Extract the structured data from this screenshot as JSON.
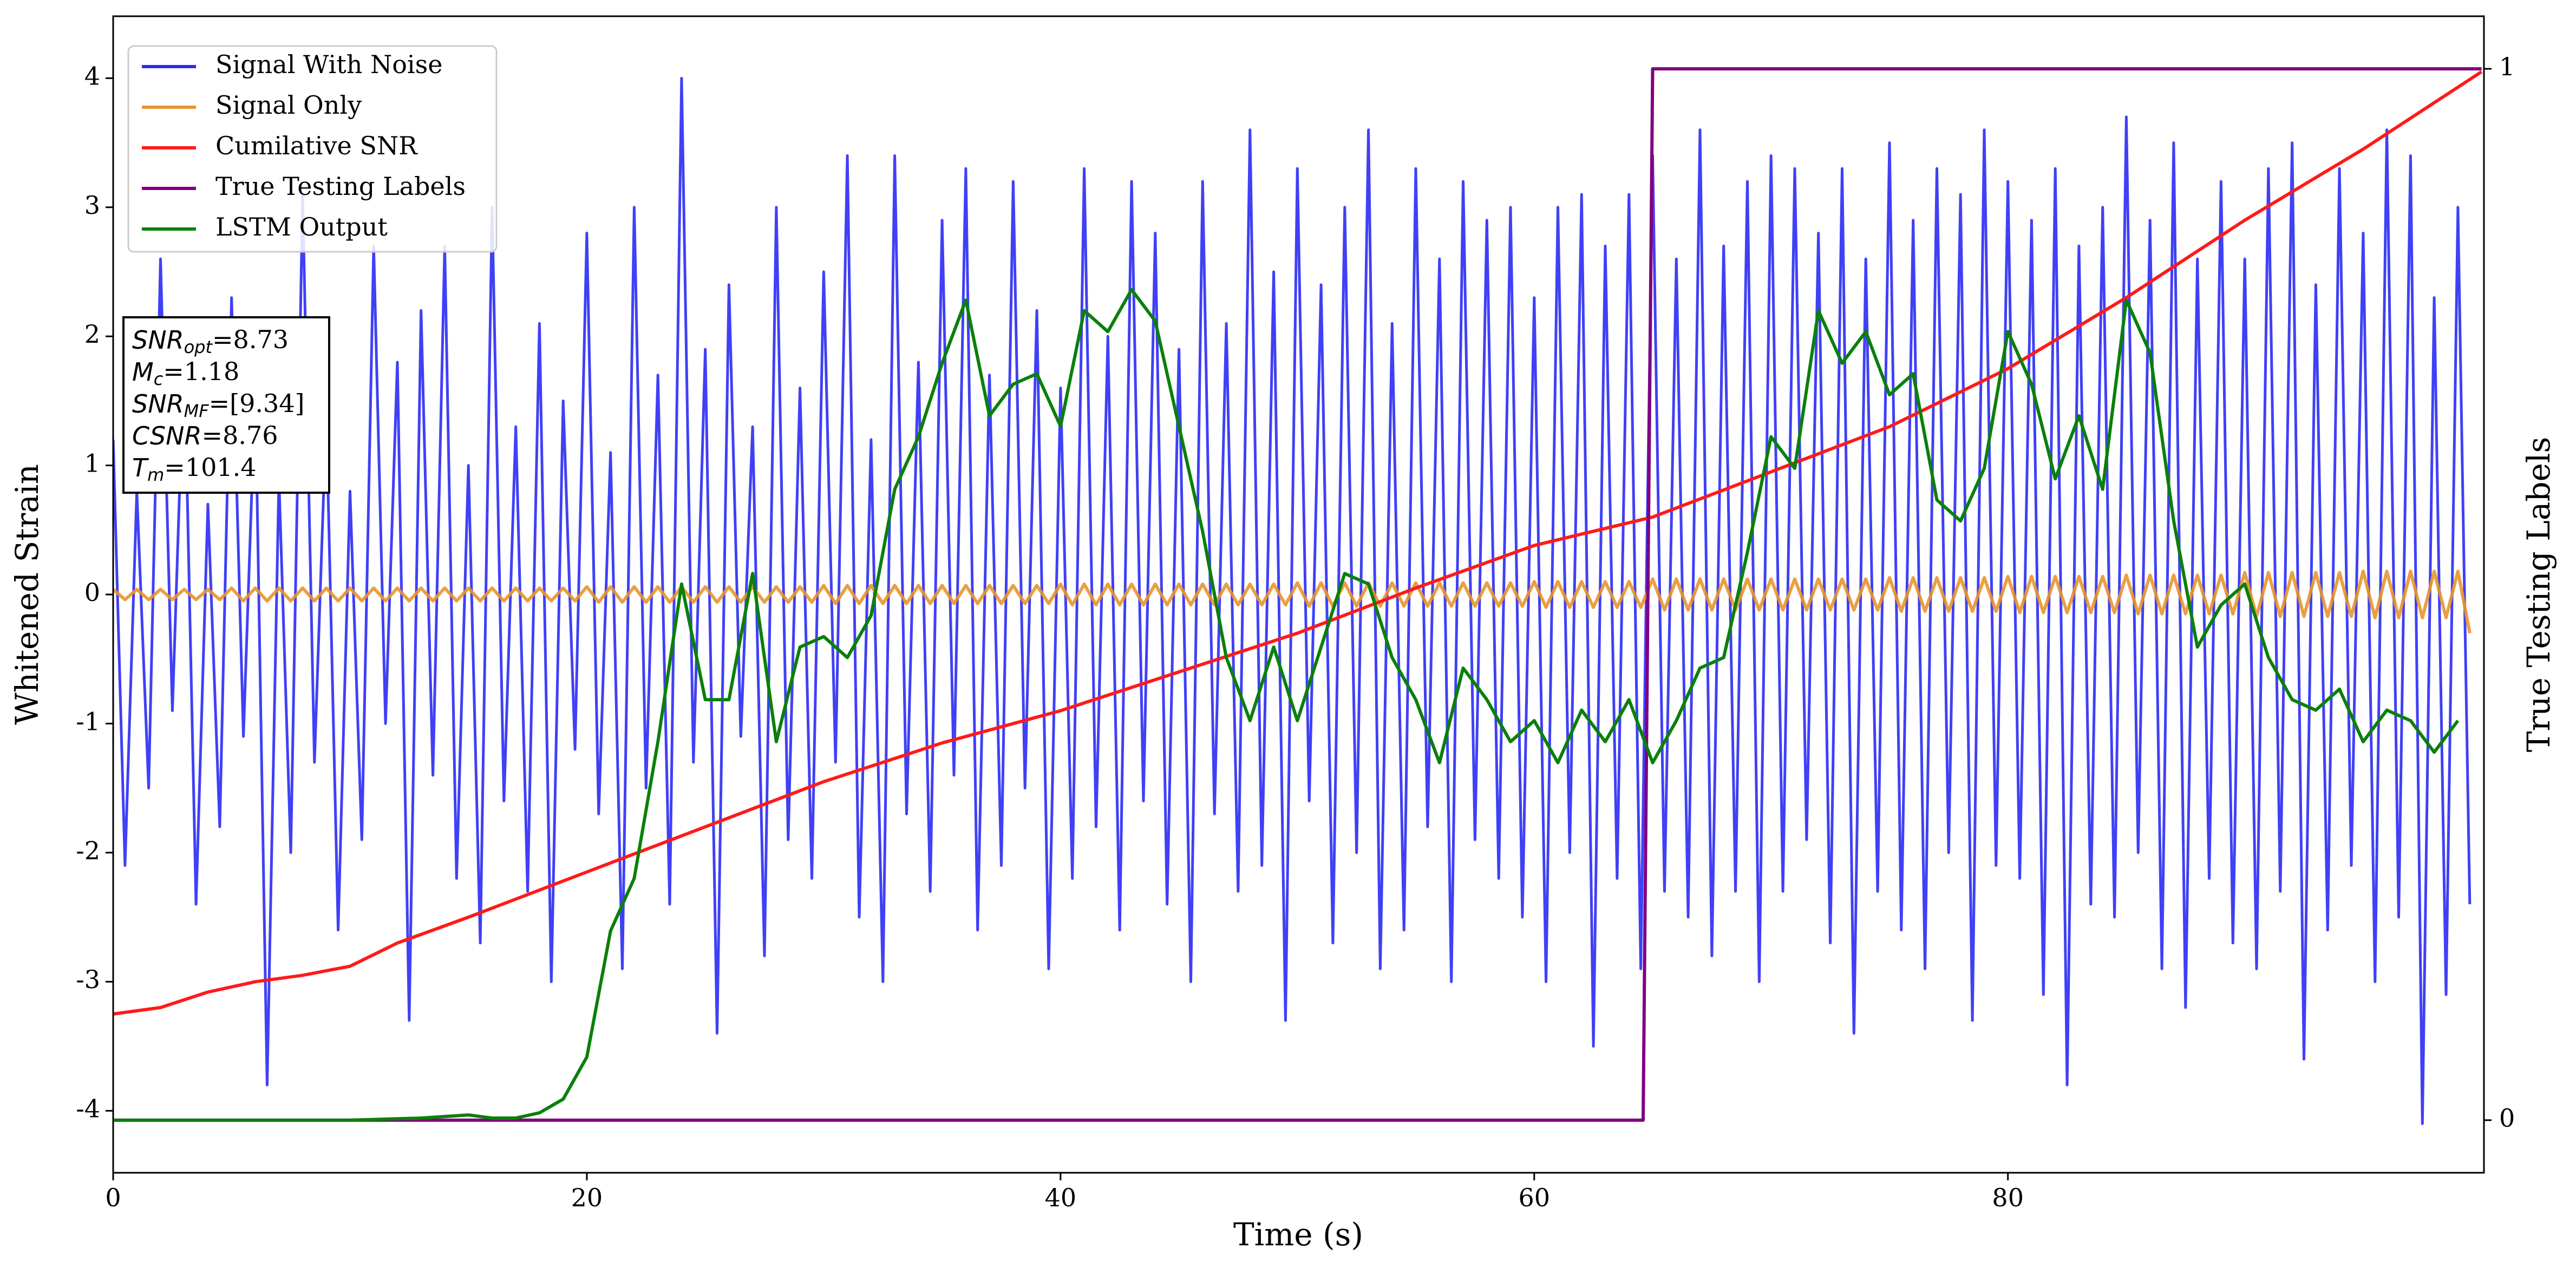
{
  "chart_data": {
    "type": "line",
    "xlabel": "Time (s)",
    "ylabel": "Whitened Strain",
    "y2label": "True Testing Labels",
    "xlim": [
      0,
      100.1
    ],
    "ylim": [
      -4.48,
      4.48
    ],
    "y2lim": [
      -0.05,
      1.05
    ],
    "xticks": [
      0,
      20,
      40,
      60,
      80
    ],
    "yticks": [
      -4,
      -3,
      -2,
      -1,
      0,
      1,
      2,
      3,
      4
    ],
    "y2ticks": [
      0,
      1
    ],
    "grid": false,
    "legend": "upper left",
    "annotations": [
      {
        "text": "SNR",
        "sub": "opt",
        "value": "=8.73"
      },
      {
        "text": "M",
        "sub": "c",
        "value": "=1.18"
      },
      {
        "text": "SNR",
        "sub": "MF",
        "value": "=[9.34]"
      },
      {
        "text": "CSNR",
        "sub": null,
        "value": "=8.76"
      },
      {
        "text": "T",
        "sub": "m",
        "value": "=101.4"
      }
    ],
    "x": [
      0,
      0.5,
      1,
      1.5,
      2,
      2.5,
      3,
      3.5,
      4,
      4.5,
      5,
      5.5,
      6,
      6.5,
      7,
      7.5,
      8,
      8.5,
      9,
      9.5,
      10,
      10.5,
      11,
      11.5,
      12,
      12.5,
      13,
      13.5,
      14,
      14.5,
      15,
      15.5,
      16,
      16.5,
      17,
      17.5,
      18,
      18.5,
      19,
      19.5,
      20,
      20.5,
      21,
      21.5,
      22,
      22.5,
      23,
      23.5,
      24,
      24.5,
      25,
      25.5,
      26,
      26.5,
      27,
      27.5,
      28,
      28.5,
      29,
      29.5,
      30,
      30.5,
      31,
      31.5,
      32,
      32.5,
      33,
      33.5,
      34,
      34.5,
      35,
      35.5,
      36,
      36.5,
      37,
      37.5,
      38,
      38.5,
      39,
      39.5,
      40,
      40.5,
      41,
      41.5,
      42,
      42.5,
      43,
      43.5,
      44,
      44.5,
      45,
      45.5,
      46,
      46.5,
      47,
      47.5,
      48,
      48.5,
      49,
      49.5,
      50,
      50.5,
      51,
      51.5,
      52,
      52.5,
      53,
      53.5,
      54,
      54.5,
      55,
      55.5,
      56,
      56.5,
      57,
      57.5,
      58,
      58.5,
      59,
      59.5,
      60,
      60.5,
      61,
      61.5,
      62,
      62.5,
      63,
      63.5,
      64,
      64.5,
      65,
      65.5,
      66,
      66.5,
      67,
      67.5,
      68,
      68.5,
      69,
      69.5,
      70,
      70.5,
      71,
      71.5,
      72,
      72.5,
      73,
      73.5,
      74,
      74.5,
      75,
      75.5,
      76,
      76.5,
      77,
      77.5,
      78,
      78.5,
      79,
      79.5,
      80,
      80.5,
      81,
      81.5,
      82,
      82.5,
      83,
      83.5,
      84,
      84.5,
      85,
      85.5,
      86,
      86.5,
      87,
      87.5,
      88,
      88.5,
      89,
      89.5,
      90,
      90.5,
      91,
      91.5,
      92,
      92.5,
      93,
      93.5,
      94,
      94.5,
      95,
      95.5,
      96,
      96.5,
      97,
      97.5,
      98,
      98.5,
      99,
      99.5
    ],
    "series": [
      {
        "name": "Signal With Noise",
        "color": "#2b2bf5",
        "values": [
          1.2,
          -2.1,
          0.8,
          -1.5,
          2.6,
          -0.9,
          1.9,
          -2.4,
          0.7,
          -1.8,
          2.3,
          -1.1,
          1.6,
          -3.8,
          0.9,
          -2.0,
          3.1,
          -1.3,
          1.4,
          -2.6,
          0.8,
          -1.9,
          2.7,
          -1.0,
          1.8,
          -3.3,
          2.2,
          -1.4,
          2.7,
          -2.2,
          1.0,
          -2.7,
          3.0,
          -1.6,
          1.3,
          -2.3,
          2.1,
          -3.0,
          1.5,
          -1.2,
          2.8,
          -1.7,
          1.1,
          -2.9,
          3.0,
          -1.5,
          1.7,
          -2.4,
          4.0,
          -1.3,
          1.9,
          -3.4,
          2.4,
          -1.1,
          1.3,
          -2.8,
          3.0,
          -1.9,
          1.6,
          -2.2,
          2.5,
          -1.3,
          3.4,
          -2.5,
          1.2,
          -3.0,
          3.4,
          -1.7,
          1.8,
          -2.3,
          2.9,
          -1.4,
          3.3,
          -2.6,
          1.7,
          -2.1,
          3.2,
          -1.5,
          2.2,
          -2.9,
          1.6,
          -2.2,
          3.3,
          -1.8,
          2.0,
          -2.6,
          3.2,
          -1.6,
          2.8,
          -2.4,
          1.9,
          -3.0,
          3.2,
          -1.7,
          2.1,
          -2.3,
          3.6,
          -2.1,
          2.5,
          -3.3,
          3.3,
          -1.6,
          2.4,
          -2.7,
          3.0,
          -2.0,
          3.6,
          -2.9,
          2.1,
          -2.6,
          3.3,
          -1.8,
          2.6,
          -3.0,
          3.2,
          -1.9,
          2.9,
          -2.2,
          3.0,
          -2.5,
          2.3,
          -3.0,
          3.0,
          -2.0,
          3.1,
          -3.5,
          2.7,
          -2.2,
          3.1,
          -2.9,
          3.4,
          -2.3,
          2.6,
          -2.5,
          3.6,
          -2.8,
          2.7,
          -2.3,
          3.2,
          -3.0,
          3.4,
          -2.3,
          3.3,
          -1.9,
          2.8,
          -2.7,
          3.3,
          -3.4,
          2.6,
          -2.3,
          3.5,
          -2.6,
          2.9,
          -2.9,
          3.3,
          -2.0,
          3.1,
          -3.3,
          3.6,
          -2.1,
          3.2,
          -2.2,
          2.9,
          -3.1,
          3.3,
          -3.8,
          2.7,
          -2.4,
          3.0,
          -2.5,
          3.7,
          -2.0,
          2.9,
          -2.9,
          3.5,
          -3.2,
          2.6,
          -2.2,
          3.2,
          -2.7,
          2.6,
          -2.9,
          3.3,
          -2.3,
          3.5,
          -3.6,
          2.4,
          -2.6,
          3.3,
          -2.1,
          2.8,
          -3.0,
          3.6,
          -2.5,
          3.4,
          -4.1,
          2.3,
          -3.1,
          3.0,
          -2.4
        ]
      },
      {
        "name": "Signal Only",
        "color": "#e8952c",
        "values": [
          0.04,
          -0.04,
          0.04,
          -0.04,
          0.04,
          -0.04,
          0.04,
          -0.04,
          0.04,
          -0.04,
          0.05,
          -0.05,
          0.05,
          -0.05,
          0.05,
          -0.05,
          0.05,
          -0.05,
          0.05,
          -0.05,
          0.05,
          -0.05,
          0.05,
          -0.05,
          0.05,
          -0.05,
          0.05,
          -0.05,
          0.05,
          -0.05,
          0.05,
          -0.05,
          0.05,
          -0.05,
          0.05,
          -0.05,
          0.05,
          -0.05,
          0.05,
          -0.05,
          0.06,
          -0.06,
          0.06,
          -0.06,
          0.06,
          -0.06,
          0.06,
          -0.06,
          0.06,
          -0.06,
          0.06,
          -0.06,
          0.06,
          -0.06,
          0.06,
          -0.06,
          0.06,
          -0.06,
          0.06,
          -0.06,
          0.07,
          -0.07,
          0.07,
          -0.07,
          0.07,
          -0.07,
          0.07,
          -0.07,
          0.07,
          -0.07,
          0.07,
          -0.07,
          0.07,
          -0.07,
          0.07,
          -0.07,
          0.07,
          -0.07,
          0.07,
          -0.07,
          0.08,
          -0.08,
          0.08,
          -0.08,
          0.08,
          -0.08,
          0.08,
          -0.08,
          0.08,
          -0.08,
          0.08,
          -0.08,
          0.08,
          -0.08,
          0.08,
          -0.08,
          0.08,
          -0.08,
          0.08,
          -0.08,
          0.09,
          -0.09,
          0.09,
          -0.09,
          0.09,
          -0.09,
          0.09,
          -0.09,
          0.09,
          -0.09,
          0.09,
          -0.09,
          0.09,
          -0.09,
          0.09,
          -0.09,
          0.09,
          -0.09,
          0.09,
          -0.09,
          0.1,
          -0.1,
          0.1,
          -0.1,
          0.1,
          -0.1,
          0.1,
          -0.1,
          0.1,
          -0.1,
          0.12,
          -0.12,
          0.12,
          -0.12,
          0.12,
          -0.12,
          0.12,
          -0.12,
          0.12,
          -0.12,
          0.12,
          -0.12,
          0.12,
          -0.12,
          0.12,
          -0.12,
          0.12,
          -0.12,
          0.12,
          -0.12,
          0.13,
          -0.13,
          0.13,
          -0.13,
          0.13,
          -0.13,
          0.13,
          -0.13,
          0.13,
          -0.13,
          0.14,
          -0.14,
          0.14,
          -0.14,
          0.14,
          -0.14,
          0.14,
          -0.14,
          0.14,
          -0.14,
          0.15,
          -0.15,
          0.15,
          -0.15,
          0.15,
          -0.15,
          0.15,
          -0.15,
          0.15,
          -0.15,
          0.17,
          -0.17,
          0.17,
          -0.17,
          0.17,
          -0.17,
          0.17,
          -0.17,
          0.17,
          -0.17,
          0.18,
          -0.18,
          0.18,
          -0.18,
          0.18,
          -0.18,
          0.18,
          -0.18,
          0.18,
          -0.3
        ]
      },
      {
        "name": "Cumilative SNR",
        "color": "#ff1a1a",
        "x": [
          0,
          2,
          4,
          6,
          8,
          10,
          12,
          15,
          20,
          25,
          30,
          35,
          40,
          45,
          50,
          55,
          60,
          65,
          70,
          75,
          80,
          85,
          90,
          95,
          100
        ],
        "values": [
          -3.25,
          -3.2,
          -3.08,
          -3.0,
          -2.95,
          -2.88,
          -2.7,
          -2.5,
          -2.15,
          -1.8,
          -1.45,
          -1.15,
          -0.9,
          -0.6,
          -0.3,
          0.05,
          0.38,
          0.6,
          0.95,
          1.3,
          1.75,
          2.3,
          2.9,
          3.45,
          4.05
        ]
      },
      {
        "name": "True Testing Labels",
        "color": "#800080",
        "axis": "y2",
        "x": [
          0,
          64.6,
          65,
          100
        ],
        "values": [
          0,
          0,
          1,
          1
        ]
      },
      {
        "name": "LSTM Output",
        "color": "#0a800a",
        "axis": "y2",
        "x": [
          0,
          5,
          10,
          13,
          15,
          16,
          17,
          18,
          19,
          20,
          21,
          22,
          23,
          24,
          25,
          26,
          27,
          28,
          29,
          30,
          31,
          32,
          33,
          34,
          35,
          36,
          37,
          38,
          39,
          40,
          41,
          42,
          43,
          44,
          45,
          46,
          47,
          48,
          49,
          50,
          51,
          52,
          53,
          54,
          55,
          56,
          57,
          58,
          59,
          60,
          61,
          62,
          63,
          64,
          65,
          66,
          67,
          68,
          69,
          70,
          71,
          72,
          73,
          74,
          75,
          76,
          77,
          78,
          79,
          80,
          81,
          82,
          83,
          84,
          85,
          86,
          87,
          88,
          89,
          90,
          91,
          92,
          93,
          94,
          95,
          96,
          97,
          98,
          99
        ],
        "values": [
          0,
          0,
          0,
          0.002,
          0.005,
          0.002,
          0.002,
          0.007,
          0.02,
          0.06,
          0.18,
          0.23,
          0.36,
          0.51,
          0.4,
          0.4,
          0.52,
          0.36,
          0.45,
          0.46,
          0.44,
          0.48,
          0.6,
          0.65,
          0.72,
          0.78,
          0.67,
          0.7,
          0.71,
          0.66,
          0.77,
          0.75,
          0.79,
          0.76,
          0.66,
          0.56,
          0.44,
          0.38,
          0.45,
          0.38,
          0.45,
          0.52,
          0.51,
          0.44,
          0.4,
          0.34,
          0.43,
          0.4,
          0.36,
          0.38,
          0.34,
          0.39,
          0.36,
          0.4,
          0.34,
          0.38,
          0.43,
          0.44,
          0.54,
          0.65,
          0.62,
          0.77,
          0.72,
          0.75,
          0.69,
          0.71,
          0.59,
          0.57,
          0.62,
          0.75,
          0.7,
          0.61,
          0.67,
          0.6,
          0.78,
          0.73,
          0.57,
          0.45,
          0.49,
          0.51,
          0.44,
          0.4,
          0.39,
          0.41,
          0.36,
          0.39,
          0.38,
          0.35,
          0.38
        ]
      }
    ]
  }
}
